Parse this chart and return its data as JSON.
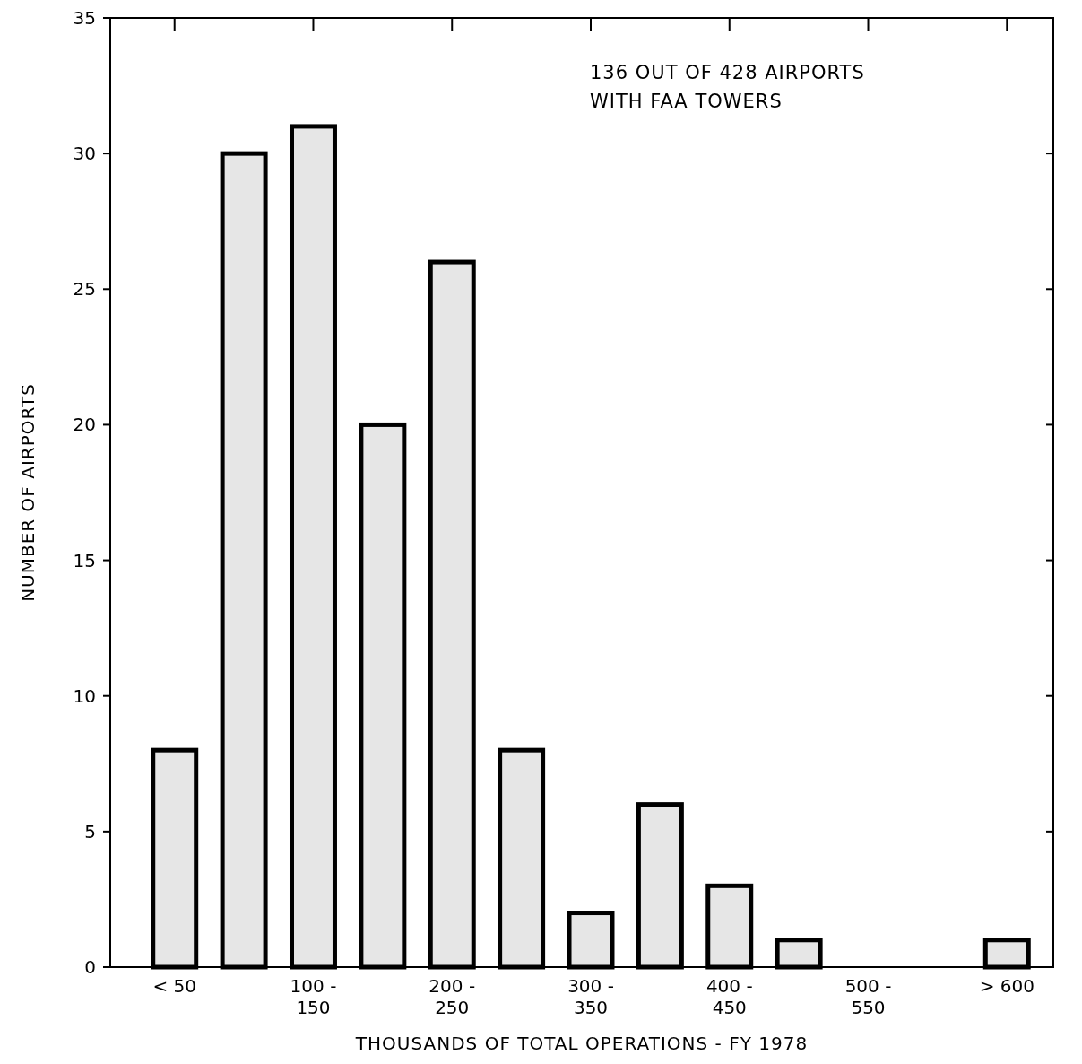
{
  "chart_data": {
    "type": "bar",
    "categories": [
      "< 50",
      null,
      "100 -\n150",
      null,
      "200 -\n250",
      null,
      "300 -\n350",
      null,
      "400 -\n450",
      null,
      "500 -\n550",
      null,
      "> 600"
    ],
    "values": [
      8,
      30,
      31,
      20,
      26,
      8,
      2,
      6,
      3,
      1,
      0,
      0,
      1
    ],
    "color": "#e6e6e6",
    "xlabel": "THOUSANDS OF TOTAL OPERATIONS - FY 1978",
    "ylabel": "NUMBER OF AIRPORTS",
    "annotations": [
      "136 OUT OF 428 AIRPORTS\nWITH FAA TOWERS"
    ],
    "ylim": [
      0,
      35
    ],
    "yticks": [
      0,
      5,
      10,
      15,
      20,
      25,
      30,
      35
    ],
    "grid": false
  }
}
